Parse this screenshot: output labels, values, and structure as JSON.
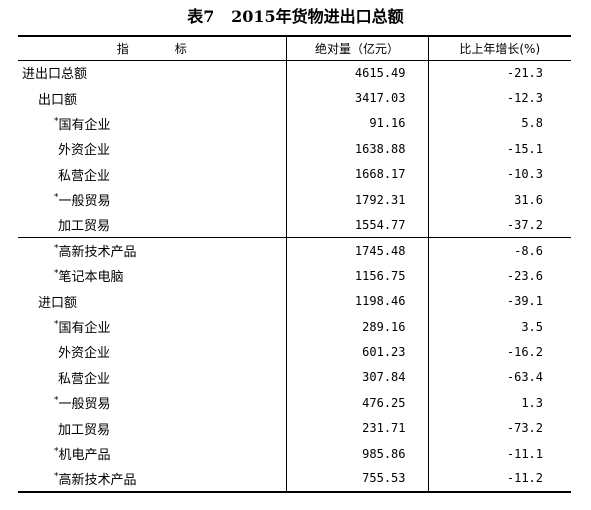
{
  "title": "表7   2015年货物进出口总额",
  "header": {
    "col_name_a": "指",
    "col_name_b": "标",
    "col_value": "绝对量（亿元）",
    "col_growth": "比上年增长(%)"
  },
  "rows": [
    {
      "star": "",
      "name": "进出口总额",
      "value": "4615.49",
      "growth": "-21.3"
    },
    {
      "star": "",
      "name": "出口额",
      "value": "3417.03",
      "growth": "-12.3"
    },
    {
      "star": "*",
      "name": "国有企业",
      "value": "91.16",
      "growth": "5.8"
    },
    {
      "star": "",
      "name": "外资企业",
      "value": "1638.88",
      "growth": "-15.1"
    },
    {
      "star": "",
      "name": "私营企业",
      "value": "1668.17",
      "growth": "-10.3"
    },
    {
      "star": "*",
      "name": "一般贸易",
      "value": "1792.31",
      "growth": "31.6"
    },
    {
      "star": "",
      "name": "加工贸易",
      "value": "1554.77",
      "growth": "-37.2"
    },
    {
      "star": "*",
      "name": "高新技术产品",
      "value": "1745.48",
      "growth": "-8.6"
    },
    {
      "star": "*",
      "name": "笔记本电脑",
      "value": "1156.75",
      "growth": "-23.6"
    },
    {
      "star": "",
      "name": "进口额",
      "value": "1198.46",
      "growth": "-39.1"
    },
    {
      "star": "*",
      "name": "国有企业",
      "value": "289.16",
      "growth": "3.5"
    },
    {
      "star": "",
      "name": "外资企业",
      "value": "601.23",
      "growth": "-16.2"
    },
    {
      "star": "",
      "name": "私营企业",
      "value": "307.84",
      "growth": "-63.4"
    },
    {
      "star": "*",
      "name": "一般贸易",
      "value": "476.25",
      "growth": "1.3"
    },
    {
      "star": "",
      "name": "加工贸易",
      "value": "231.71",
      "growth": "-73.2"
    },
    {
      "star": "*",
      "name": "机电产品",
      "value": "985.86",
      "growth": "-11.1"
    },
    {
      "star": "*",
      "name": "高新技术产品",
      "value": "755.53",
      "growth": "-11.2"
    }
  ]
}
